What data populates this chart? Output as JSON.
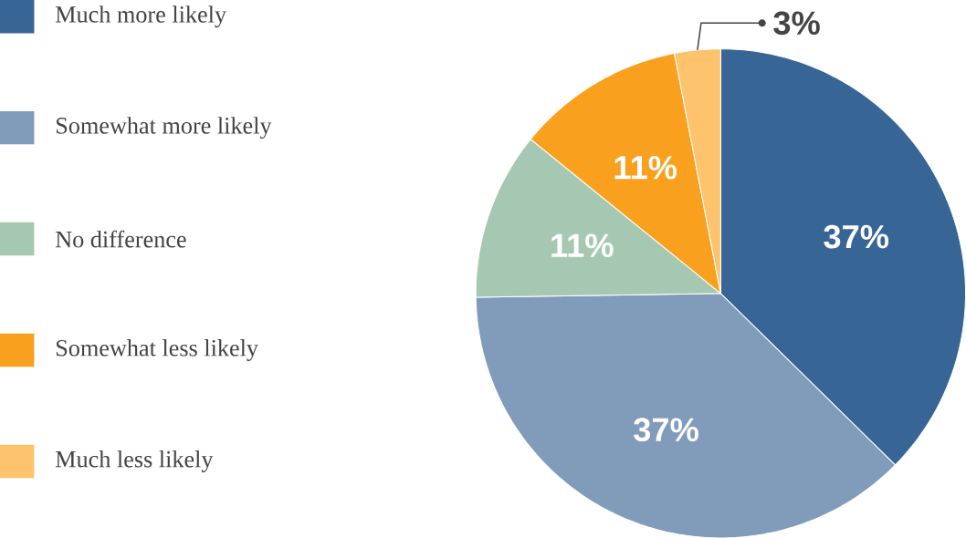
{
  "chart_data": {
    "type": "pie",
    "categories": [
      "Much more likely",
      "Somewhat more likely",
      "No difference",
      "Somewhat less likely",
      "Much less likely"
    ],
    "values": [
      37,
      37,
      11,
      11,
      3
    ],
    "colors": [
      "#366596",
      "#819bba",
      "#a6c8b3",
      "#f9a11f",
      "#fec36d"
    ],
    "value_labels": [
      "37%",
      "37%",
      "11%",
      "11%",
      "3%"
    ],
    "legend": "left"
  }
}
